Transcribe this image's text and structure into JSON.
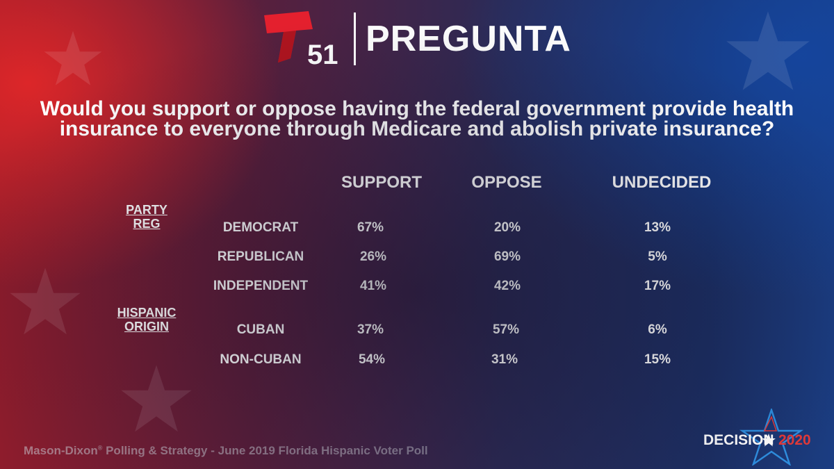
{
  "header": {
    "logo_number": "51",
    "title": "PREGUNTA"
  },
  "question": "Would you support or oppose having the federal government provide health insurance to everyone through Medicare and abolish private insurance?",
  "table": {
    "columns": [
      "SUPPORT",
      "OPPOSE",
      "UNDECIDED"
    ],
    "groups": [
      {
        "label_line1": "PARTY",
        "label_line2": "REG",
        "rows": [
          {
            "label": "DEMOCRAT",
            "values": [
              "67%",
              "20%",
              "13%"
            ]
          },
          {
            "label": "REPUBLICAN",
            "values": [
              "26%",
              "69%",
              "5%"
            ]
          },
          {
            "label": "INDEPENDENT",
            "values": [
              "41%",
              "42%",
              "17%"
            ]
          }
        ]
      },
      {
        "label_line1": "HISPANIC",
        "label_line2": "ORIGIN",
        "rows": [
          {
            "label": "CUBAN",
            "values": [
              "37%",
              "57%",
              "6%"
            ]
          },
          {
            "label": "NON-CUBAN",
            "values": [
              "54%",
              "31%",
              "15%"
            ]
          }
        ]
      }
    ]
  },
  "footer": {
    "source_part1": "Mason-Dixon",
    "source_mark": "®",
    "source_part2": " Polling & Strategy - June 2019 Florida Hispanic Voter Poll"
  },
  "badge": {
    "word": "DECISION",
    "year": "2020"
  },
  "colors": {
    "brand_red": "#e4202e",
    "text": "#ffffff",
    "year_red": "#e23a3a"
  }
}
